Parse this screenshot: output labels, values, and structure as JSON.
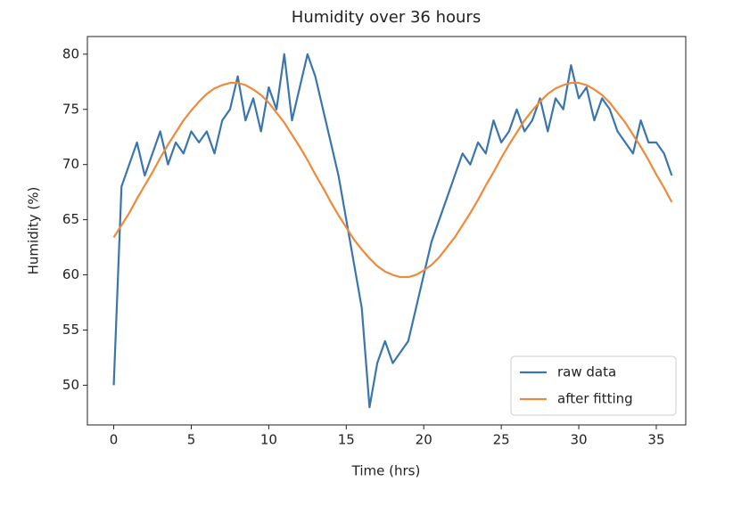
{
  "chart_data": {
    "type": "line",
    "title": "Humidity over 36 hours",
    "x_label": "Time (hrs)",
    "y_label": "Humidity (%)",
    "x": [
      0,
      0.5,
      1,
      1.5,
      2,
      2.5,
      3,
      3.5,
      4,
      4.5,
      5,
      5.5,
      6,
      6.5,
      7,
      7.5,
      8,
      8.5,
      9,
      9.5,
      10,
      10.5,
      11,
      11.5,
      12,
      12.5,
      13,
      13.5,
      14,
      14.5,
      15,
      15.5,
      16,
      16.5,
      17,
      17.5,
      18,
      18.5,
      19,
      19.5,
      20,
      20.5,
      21,
      21.5,
      22,
      22.5,
      23,
      23.5,
      24,
      24.5,
      25,
      25.5,
      26,
      26.5,
      27,
      27.5,
      28,
      28.5,
      29,
      29.5,
      30,
      30.5,
      31,
      31.5,
      32,
      32.5,
      33,
      33.5,
      34,
      34.5,
      35,
      35.5,
      36
    ],
    "series": [
      {
        "name": "raw data",
        "color": "#3a75b0",
        "values": [
          50,
          68,
          70,
          72,
          69,
          71,
          73,
          70,
          72,
          71,
          73,
          72,
          73,
          71,
          74,
          75,
          78,
          74,
          76,
          73,
          77,
          75,
          80,
          74,
          77,
          80,
          78,
          75,
          72,
          69,
          65,
          61,
          57,
          48,
          52,
          54,
          52,
          53,
          54,
          57,
          60,
          63,
          65,
          67,
          69,
          71,
          70,
          72,
          71,
          74,
          72,
          73,
          75,
          73,
          74,
          76,
          73,
          76,
          75,
          79,
          76,
          77,
          74,
          76,
          75,
          73,
          72,
          71,
          74,
          72,
          72,
          71,
          69
        ]
      },
      {
        "name": "after fitting",
        "color": "#ef8a3a",
        "values": [
          63.4,
          64.5,
          65.6,
          66.9,
          68.1,
          69.3,
          70.6,
          71.8,
          72.9,
          74.0,
          74.9,
          75.7,
          76.4,
          76.9,
          77.2,
          77.4,
          77.4,
          77.2,
          76.8,
          76.3,
          75.6,
          74.7,
          73.8,
          72.7,
          71.6,
          70.4,
          69.1,
          67.9,
          66.6,
          65.4,
          64.3,
          63.2,
          62.3,
          61.5,
          60.8,
          60.3,
          60.0,
          59.8,
          59.8,
          60.0,
          60.4,
          60.9,
          61.6,
          62.5,
          63.4,
          64.5,
          65.6,
          66.8,
          68.1,
          69.3,
          70.6,
          71.8,
          72.9,
          74.0,
          74.9,
          75.7,
          76.4,
          76.9,
          77.2,
          77.4,
          77.4,
          77.2,
          76.8,
          76.3,
          75.6,
          74.7,
          73.8,
          72.7,
          71.6,
          70.4,
          69.1,
          67.9,
          66.6
        ]
      }
    ],
    "xlim": [
      -1.7,
      36.9
    ],
    "ylim": [
      46.4,
      81.6
    ],
    "xticks": [
      0,
      5,
      10,
      15,
      20,
      25,
      30,
      35
    ],
    "yticks": [
      50,
      55,
      60,
      65,
      70,
      75,
      80
    ],
    "legend": "lower right",
    "grid": false
  }
}
